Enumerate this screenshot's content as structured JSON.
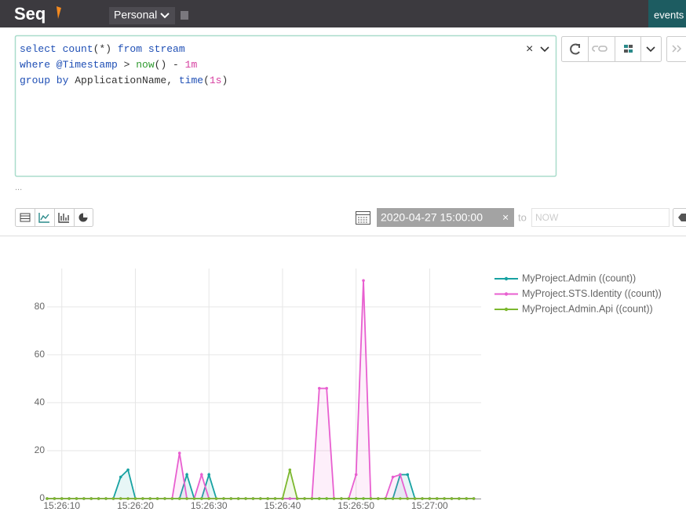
{
  "header": {
    "logo": "Seq",
    "workspace": "Personal",
    "tab": "events"
  },
  "query": {
    "lines": [
      {
        "tokens": [
          "select ",
          "count",
          "(*)",
          " from stream"
        ],
        "colors": [
          "#1f4fb5",
          "#1f4fb5",
          "#333333",
          "#1f4fb5"
        ]
      },
      {
        "tokens": [
          "where @Timestamp ",
          ">",
          " ",
          "now",
          "() - ",
          "1m"
        ],
        "colors": [
          "#1f4fb5",
          "#333333",
          "#333333",
          "#2f9a2f",
          "#333333",
          "#d63fa0"
        ]
      },
      {
        "tokens": [
          "group by ",
          "ApplicationName, ",
          "time",
          "(",
          "1s",
          ")"
        ],
        "colors": [
          "#1f4fb5",
          "#333333",
          "#1f4fb5",
          "#333333",
          "#d63fa0",
          "#333333"
        ]
      }
    ]
  },
  "more": "...",
  "date_range": {
    "from": "2020-04-27 15:00:00",
    "to_label": "to",
    "to_placeholder": "NOW"
  },
  "chart_data": {
    "type": "line",
    "x": [
      "15:26:08",
      "15:26:09",
      "15:26:10",
      "15:26:11",
      "15:26:12",
      "15:26:13",
      "15:26:14",
      "15:26:15",
      "15:26:16",
      "15:26:17",
      "15:26:18",
      "15:26:19",
      "15:26:20",
      "15:26:21",
      "15:26:22",
      "15:26:23",
      "15:26:24",
      "15:26:25",
      "15:26:26",
      "15:26:27",
      "15:26:28",
      "15:26:29",
      "15:26:30",
      "15:26:31",
      "15:26:32",
      "15:26:33",
      "15:26:34",
      "15:26:35",
      "15:26:36",
      "15:26:37",
      "15:26:38",
      "15:26:39",
      "15:26:40",
      "15:26:41",
      "15:26:42",
      "15:26:43",
      "15:26:44",
      "15:26:45",
      "15:26:46",
      "15:26:47",
      "15:26:48",
      "15:26:49",
      "15:26:50",
      "15:26:51",
      "15:26:52",
      "15:26:53",
      "15:26:54",
      "15:26:55",
      "15:26:56",
      "15:26:57",
      "15:26:58",
      "15:26:59",
      "15:27:00",
      "15:27:01",
      "15:27:02",
      "15:27:03",
      "15:27:04",
      "15:27:05",
      "15:27:06"
    ],
    "series": [
      {
        "name": "MyProject.Admin ((count))",
        "color": "#17a2a2",
        "values": [
          0,
          0,
          0,
          0,
          0,
          0,
          0,
          0,
          0,
          0,
          9,
          12,
          0,
          0,
          0,
          0,
          0,
          0,
          0,
          10,
          0,
          0,
          10,
          0,
          0,
          0,
          0,
          0,
          0,
          0,
          0,
          0,
          0,
          0,
          0,
          0,
          0,
          0,
          0,
          0,
          0,
          0,
          0,
          0,
          0,
          0,
          0,
          0,
          10,
          10,
          0,
          0,
          0,
          0,
          0,
          0,
          0,
          0,
          0
        ]
      },
      {
        "name": "MyProject.STS.Identity ((count))",
        "color": "#e85fd0",
        "values": [
          0,
          0,
          0,
          0,
          0,
          0,
          0,
          0,
          0,
          0,
          0,
          0,
          0,
          0,
          0,
          0,
          0,
          0,
          19,
          0,
          0,
          10,
          0,
          0,
          0,
          0,
          0,
          0,
          0,
          0,
          0,
          0,
          0,
          0,
          0,
          0,
          0,
          46,
          46,
          0,
          0,
          0,
          10,
          91,
          0,
          0,
          0,
          9,
          10,
          0,
          0,
          0,
          0,
          0,
          0,
          0,
          0,
          0,
          0
        ]
      },
      {
        "name": "MyProject.Admin.Api ((count))",
        "color": "#7cb82f",
        "values": [
          0,
          0,
          0,
          0,
          0,
          0,
          0,
          0,
          0,
          0,
          0,
          0,
          0,
          0,
          0,
          0,
          0,
          0,
          0,
          0,
          0,
          0,
          0,
          0,
          0,
          0,
          0,
          0,
          0,
          0,
          0,
          0,
          0,
          12,
          0,
          0,
          0,
          0,
          0,
          0,
          0,
          0,
          0,
          0,
          0,
          0,
          0,
          0,
          0,
          0,
          0,
          0,
          0,
          0,
          0,
          0,
          0,
          0,
          0
        ]
      }
    ],
    "xlim": [
      "15:26:08",
      "15:27:07"
    ],
    "xticks": [
      "15:26:10",
      "15:26:20",
      "15:26:30",
      "15:26:40",
      "15:26:50",
      "15:27:00"
    ],
    "ylim": [
      0,
      96
    ],
    "yticks": [
      0,
      20,
      40,
      60,
      80
    ],
    "grid": true,
    "legend": "right"
  }
}
